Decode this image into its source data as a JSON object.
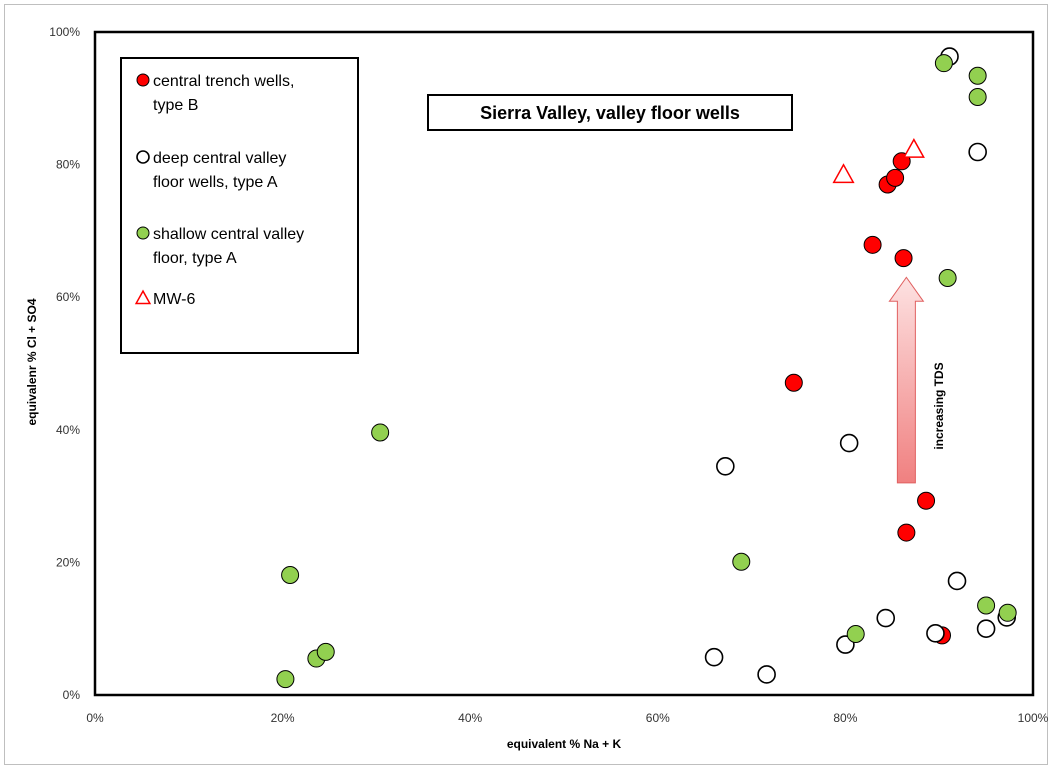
{
  "chart_data": {
    "type": "scatter",
    "title": "Sierra Valley, valley floor wells",
    "xlabel": "equivalent % Na + K",
    "ylabel": "equivalenr % Cl + SO4",
    "xlim": [
      0,
      100
    ],
    "ylim": [
      0,
      100
    ],
    "x_ticks": [
      "0%",
      "20%",
      "40%",
      "60%",
      "80%",
      "100%"
    ],
    "y_ticks": [
      "0%",
      "20%",
      "40%",
      "60%",
      "80%",
      "100%"
    ],
    "grid": false,
    "legend_position": "top-left",
    "annotation": "increasing TDS",
    "annotation_arrow": {
      "x": 86.5,
      "y_from": 32,
      "y_to": 63
    },
    "series": [
      {
        "name": "central trench wells,\ntype  B",
        "marker": "circle-filled",
        "color": "#ff0000",
        "points": [
          {
            "x": 74.5,
            "y": 47.1
          },
          {
            "x": 82.9,
            "y": 67.9
          },
          {
            "x": 84.5,
            "y": 77
          },
          {
            "x": 85.3,
            "y": 78
          },
          {
            "x": 86,
            "y": 80.5
          },
          {
            "x": 86.2,
            "y": 65.9
          },
          {
            "x": 86.5,
            "y": 24.5
          },
          {
            "x": 88.6,
            "y": 29.3
          },
          {
            "x": 90.3,
            "y": 9
          }
        ]
      },
      {
        "name": "deep central valley\nfloor wells, type A",
        "marker": "circle-open",
        "color": "#000000",
        "points": [
          {
            "x": 66,
            "y": 5.7
          },
          {
            "x": 67.2,
            "y": 34.5
          },
          {
            "x": 71.6,
            "y": 3.1
          },
          {
            "x": 80,
            "y": 7.6
          },
          {
            "x": 80.4,
            "y": 38
          },
          {
            "x": 84.3,
            "y": 11.6
          },
          {
            "x": 89.6,
            "y": 9.3
          },
          {
            "x": 91.1,
            "y": 96.3
          },
          {
            "x": 91.9,
            "y": 17.2
          },
          {
            "x": 94.1,
            "y": 81.9
          },
          {
            "x": 95,
            "y": 10
          },
          {
            "x": 97.2,
            "y": 11.7
          }
        ]
      },
      {
        "name": "shallow central valley\nfloor, type A",
        "marker": "circle-filled",
        "color": "#92d050",
        "points": [
          {
            "x": 20.3,
            "y": 2.4
          },
          {
            "x": 20.8,
            "y": 18.1
          },
          {
            "x": 23.6,
            "y": 5.5
          },
          {
            "x": 24.6,
            "y": 6.5
          },
          {
            "x": 30.4,
            "y": 39.6
          },
          {
            "x": 68.9,
            "y": 20.1
          },
          {
            "x": 81.1,
            "y": 9.2
          },
          {
            "x": 90.5,
            "y": 95.3
          },
          {
            "x": 90.9,
            "y": 62.9
          },
          {
            "x": 94.1,
            "y": 93.4
          },
          {
            "x": 94.1,
            "y": 90.2
          },
          {
            "x": 95,
            "y": 13.5
          },
          {
            "x": 97.3,
            "y": 12.4
          }
        ]
      },
      {
        "name": "MW-6",
        "marker": "triangle-open",
        "color": "#ff0000",
        "points": [
          {
            "x": 79.8,
            "y": 78.5
          },
          {
            "x": 87.3,
            "y": 82.3
          }
        ]
      }
    ]
  }
}
